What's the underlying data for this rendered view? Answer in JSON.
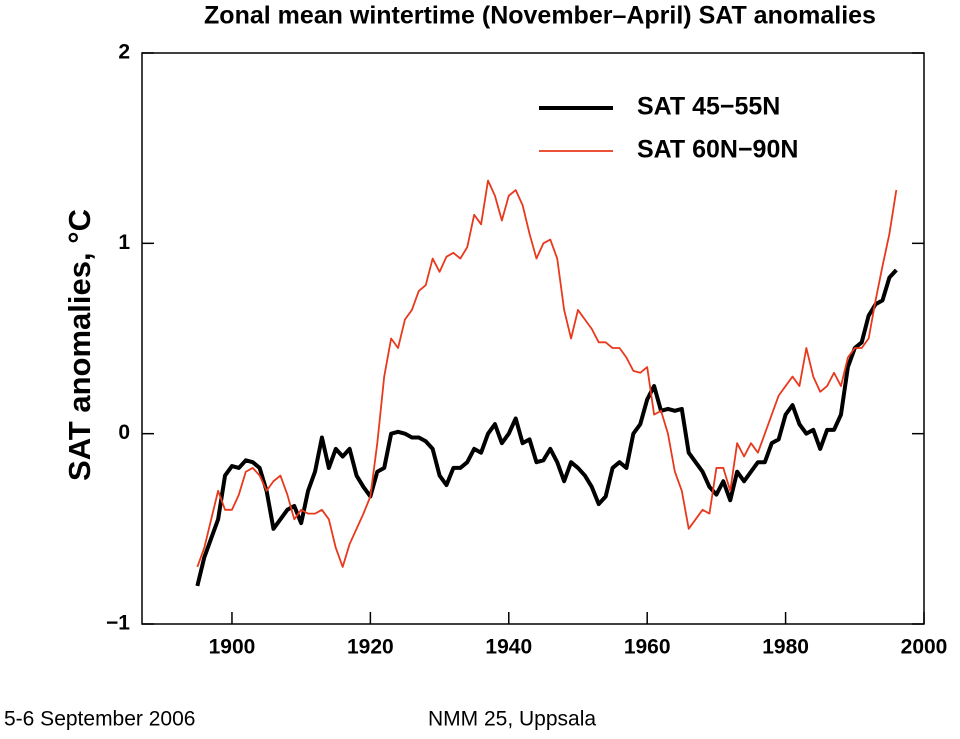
{
  "chart_data": {
    "type": "line",
    "title": "Zonal mean wintertime (November–April) SAT anomalies",
    "y_label": "SAT anomalies, °C",
    "x": [
      1895,
      1896,
      1897,
      1898,
      1899,
      1900,
      1901,
      1902,
      1903,
      1904,
      1905,
      1906,
      1907,
      1908,
      1909,
      1910,
      1911,
      1912,
      1913,
      1914,
      1915,
      1916,
      1917,
      1918,
      1919,
      1920,
      1921,
      1922,
      1923,
      1924,
      1925,
      1926,
      1927,
      1928,
      1929,
      1930,
      1931,
      1932,
      1933,
      1934,
      1935,
      1936,
      1937,
      1938,
      1939,
      1940,
      1941,
      1942,
      1943,
      1944,
      1945,
      1946,
      1947,
      1948,
      1949,
      1950,
      1951,
      1952,
      1953,
      1954,
      1955,
      1956,
      1957,
      1958,
      1959,
      1960,
      1961,
      1962,
      1963,
      1964,
      1965,
      1966,
      1967,
      1968,
      1969,
      1970,
      1971,
      1972,
      1973,
      1974,
      1975,
      1976,
      1977,
      1978,
      1979,
      1980,
      1981,
      1982,
      1983,
      1984,
      1985,
      1986,
      1987,
      1988,
      1989,
      1990,
      1991,
      1992,
      1993,
      1994,
      1995,
      1996
    ],
    "series": [
      {
        "name": "SAT 45−55N",
        "color": "#000000",
        "width": 4,
        "values": [
          -0.8,
          -0.65,
          -0.55,
          -0.45,
          -0.22,
          -0.17,
          -0.18,
          -0.14,
          -0.15,
          -0.18,
          -0.3,
          -0.5,
          -0.45,
          -0.4,
          -0.38,
          -0.47,
          -0.3,
          -0.2,
          -0.02,
          -0.18,
          -0.08,
          -0.12,
          -0.08,
          -0.22,
          -0.28,
          -0.33,
          -0.2,
          -0.18,
          0.0,
          0.01,
          0.0,
          -0.02,
          -0.02,
          -0.04,
          -0.08,
          -0.22,
          -0.27,
          -0.18,
          -0.18,
          -0.15,
          -0.08,
          -0.1,
          0.0,
          0.05,
          -0.05,
          0.0,
          0.08,
          -0.05,
          -0.03,
          -0.15,
          -0.14,
          -0.08,
          -0.15,
          -0.25,
          -0.15,
          -0.18,
          -0.22,
          -0.28,
          -0.37,
          -0.33,
          -0.18,
          -0.15,
          -0.18,
          0.0,
          0.05,
          0.18,
          0.25,
          0.12,
          0.13,
          0.12,
          0.13,
          -0.1,
          -0.15,
          -0.2,
          -0.28,
          -0.32,
          -0.25,
          -0.35,
          -0.2,
          -0.25,
          -0.2,
          -0.15,
          -0.15,
          -0.05,
          -0.03,
          0.1,
          0.15,
          0.05,
          0.0,
          0.02,
          -0.08,
          0.02,
          0.02,
          0.1,
          0.35,
          0.45,
          0.48,
          0.62,
          0.68,
          0.7,
          0.82,
          0.86
        ]
      },
      {
        "name": "SAT 60N−90N",
        "color": "#e8391d",
        "width": 1.8,
        "values": [
          -0.7,
          -0.6,
          -0.45,
          -0.3,
          -0.4,
          -0.4,
          -0.32,
          -0.2,
          -0.18,
          -0.22,
          -0.3,
          -0.25,
          -0.22,
          -0.32,
          -0.45,
          -0.4,
          -0.42,
          -0.42,
          -0.4,
          -0.45,
          -0.6,
          -0.7,
          -0.58,
          -0.5,
          -0.42,
          -0.33,
          -0.05,
          0.3,
          0.5,
          0.45,
          0.6,
          0.65,
          0.75,
          0.78,
          0.92,
          0.85,
          0.93,
          0.95,
          0.92,
          0.98,
          1.15,
          1.1,
          1.33,
          1.25,
          1.12,
          1.25,
          1.28,
          1.2,
          1.05,
          0.92,
          1.0,
          1.02,
          0.92,
          0.65,
          0.5,
          0.65,
          0.6,
          0.55,
          0.48,
          0.48,
          0.45,
          0.45,
          0.4,
          0.33,
          0.32,
          0.35,
          0.1,
          0.12,
          0.0,
          -0.2,
          -0.3,
          -0.5,
          -0.45,
          -0.4,
          -0.42,
          -0.18,
          -0.18,
          -0.3,
          -0.05,
          -0.12,
          -0.05,
          -0.1,
          0.0,
          0.1,
          0.2,
          0.25,
          0.3,
          0.25,
          0.45,
          0.3,
          0.22,
          0.25,
          0.32,
          0.25,
          0.4,
          0.45,
          0.45,
          0.5,
          0.7,
          0.88,
          1.05,
          1.28
        ]
      }
    ],
    "xlim": [
      1887,
      2000
    ],
    "xticks": [
      1900,
      1920,
      1940,
      1960,
      1980,
      2000
    ],
    "ylim": [
      -1,
      2
    ],
    "yticks": [
      {
        "value": -1,
        "label": "−1"
      },
      0,
      1,
      2
    ],
    "grid": false,
    "legend": "upper right"
  },
  "footer": {
    "left": "5-6 September 2006",
    "right": "NMM 25, Uppsala"
  }
}
